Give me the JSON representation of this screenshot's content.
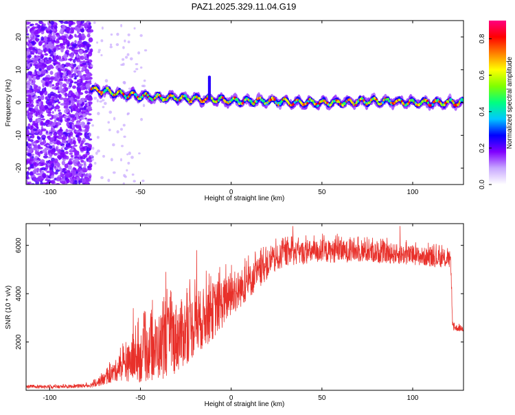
{
  "figure_title": "PAZ1.2025.329.11.04.G19",
  "colors": {
    "line": "#e8302a",
    "dot": "#8a2be2",
    "axis": "#000000"
  },
  "chart_data": [
    {
      "type": "heatmap",
      "title": "PAZ1.2025.329.11.04.G19",
      "xlabel": "Height of straight line (km)",
      "ylabel": "Frequency (Hz)",
      "xlim": [
        -113,
        128
      ],
      "ylim": [
        -25,
        25
      ],
      "xticks": [
        -100,
        -50,
        0,
        50,
        100
      ],
      "yticks": [
        -20,
        -10,
        0,
        10,
        20
      ],
      "tick_labels_x": [
        "-100",
        "-50",
        "0",
        "50",
        "100"
      ],
      "tick_labels_y": [
        "-20",
        "-10",
        "0",
        "10",
        "20"
      ],
      "noise_region_x": [
        -113,
        -77
      ],
      "ridge": {
        "x_start": -77,
        "x_end": 128,
        "frequency_points": [
          [
            -77,
            4
          ],
          [
            -70,
            3.5
          ],
          [
            -60,
            2.5
          ],
          [
            -50,
            2
          ],
          [
            -40,
            1.5
          ],
          [
            -30,
            1.5
          ],
          [
            -20,
            1
          ],
          [
            -10,
            1
          ],
          [
            0,
            0.5
          ],
          [
            20,
            0.5
          ],
          [
            40,
            0
          ],
          [
            60,
            0
          ],
          [
            80,
            0.5
          ],
          [
            100,
            0
          ],
          [
            128,
            0
          ]
        ],
        "spike": {
          "x": -12,
          "frequency_max": 8
        }
      },
      "colorbar": {
        "label": "Normalized spectral amplitude",
        "range": [
          0,
          0.9
        ],
        "ticks": [
          0.0,
          0.2,
          0.4,
          0.6,
          0.8
        ],
        "tick_labels": [
          "0.0",
          "0.2",
          "0.4",
          "0.6",
          "0.8"
        ],
        "colormap": [
          "#ffffff",
          "#c8a8ff",
          "#8000ff",
          "#0000ff",
          "#00c8ff",
          "#00ff80",
          "#80ff00",
          "#ffff00",
          "#ff8000",
          "#ff0000",
          "#ff0080"
        ]
      }
    },
    {
      "type": "line",
      "xlabel": "Height of straight line (km)",
      "ylabel": "SNR (10 * v/v)",
      "xlim": [
        -113,
        128
      ],
      "ylim": [
        0,
        6900
      ],
      "xticks": [
        -100,
        -50,
        0,
        50,
        100
      ],
      "yticks": [
        2000,
        4000,
        6000
      ],
      "tick_labels_x": [
        "-100",
        "-50",
        "0",
        "50",
        "100"
      ],
      "tick_labels_y": [
        "2000",
        "4000",
        "6000"
      ],
      "series": [
        {
          "name": "SNR",
          "envelope": [
            {
              "x": -113,
              "base": 130,
              "amp": 60
            },
            {
              "x": -90,
              "base": 150,
              "amp": 70
            },
            {
              "x": -78,
              "base": 200,
              "amp": 80
            },
            {
              "x": -70,
              "base": 450,
              "amp": 250
            },
            {
              "x": -62,
              "base": 900,
              "amp": 500
            },
            {
              "x": -50,
              "base": 1400,
              "amp": 1100
            },
            {
              "x": -40,
              "base": 1800,
              "amp": 1400
            },
            {
              "x": -30,
              "base": 2200,
              "amp": 1500
            },
            {
              "x": -20,
              "base": 2700,
              "amp": 1300
            },
            {
              "x": -10,
              "base": 3300,
              "amp": 1200
            },
            {
              "x": 0,
              "base": 3900,
              "amp": 900
            },
            {
              "x": 10,
              "base": 4500,
              "amp": 700
            },
            {
              "x": 20,
              "base": 5200,
              "amp": 600
            },
            {
              "x": 30,
              "base": 5650,
              "amp": 500
            },
            {
              "x": 50,
              "base": 5750,
              "amp": 480
            },
            {
              "x": 70,
              "base": 5750,
              "amp": 450
            },
            {
              "x": 90,
              "base": 5650,
              "amp": 420
            },
            {
              "x": 110,
              "base": 5500,
              "amp": 380
            },
            {
              "x": 121,
              "base": 5400,
              "amp": 350
            },
            {
              "x": 122,
              "base": 2600,
              "amp": 150
            },
            {
              "x": 128,
              "base": 2550,
              "amp": 120
            }
          ],
          "peaks": [
            {
              "x": -58,
              "y": 2000
            },
            {
              "x": -54,
              "y": 3400
            },
            {
              "x": -46,
              "y": 2400
            },
            {
              "x": -36,
              "y": 4900
            },
            {
              "x": -19,
              "y": 5800
            },
            {
              "x": 34,
              "y": 6800
            },
            {
              "x": 93,
              "y": 6800
            }
          ]
        }
      ]
    }
  ]
}
